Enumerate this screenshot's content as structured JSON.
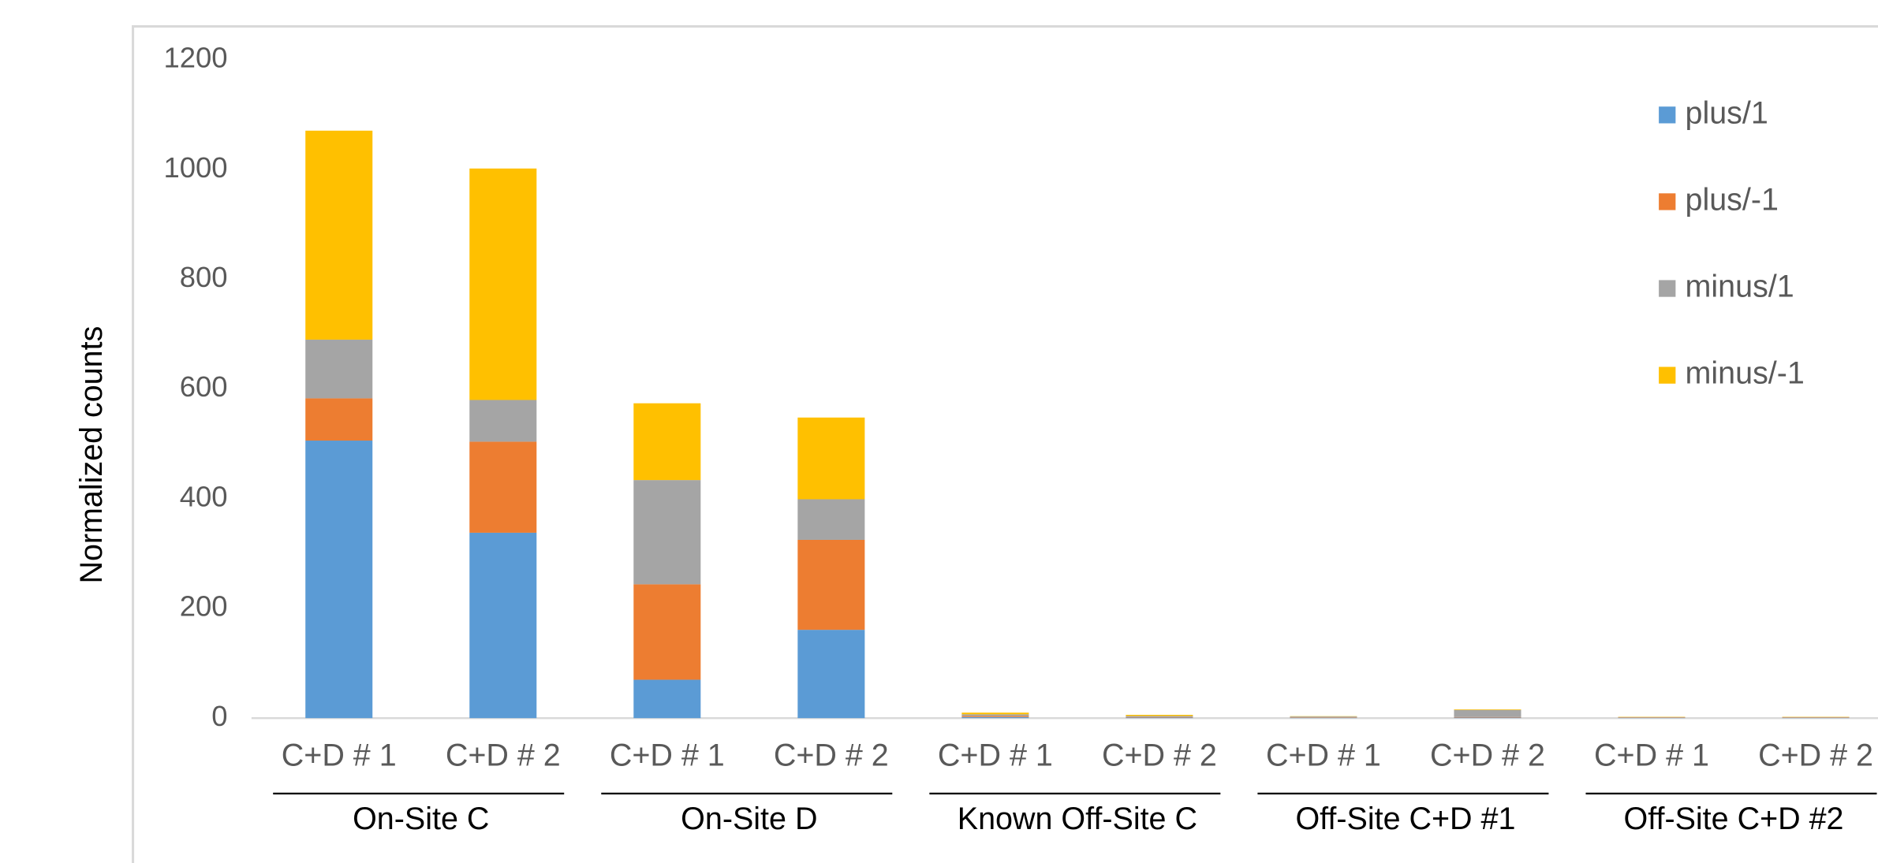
{
  "chart_data": {
    "type": "stacked-bar",
    "y_label": "Normalized counts",
    "categories": [
      "C+D # 1",
      "C+D # 2",
      "C+D # 1",
      "C+D # 2",
      "C+D # 1",
      "C+D # 2",
      "C+D # 1",
      "C+D # 2",
      "C+D # 1",
      "C+D # 2"
    ],
    "groups": [
      {
        "name": "On-Site C"
      },
      {
        "name": "On-Site D"
      },
      {
        "name": "Known Off-Site C"
      },
      {
        "name": "Off-Site C+D #1"
      },
      {
        "name": "Off-Site C+D #2"
      }
    ],
    "series": [
      {
        "name": "plus/1",
        "color": "#5b9bd5",
        "values": [
          506,
          338,
          70,
          161,
          2,
          1,
          0.5,
          1,
          0.5,
          0.5
        ]
      },
      {
        "name": "plus/-1",
        "color": "#ed7d31",
        "values": [
          77,
          166,
          174,
          164,
          2,
          1,
          0.5,
          1,
          0.5,
          0.5
        ]
      },
      {
        "name": "minus/1",
        "color": "#a5a5a5",
        "values": [
          107,
          76,
          190,
          74,
          3,
          2,
          2,
          13,
          1,
          1
        ]
      },
      {
        "name": "minus/-1",
        "color": "#ffc000",
        "values": [
          381,
          422,
          140,
          149,
          3,
          2,
          0.5,
          1,
          0.5,
          0.5
        ]
      }
    ],
    "ylim": [
      0,
      1200
    ],
    "yticks": [
      0,
      200,
      400,
      600,
      800,
      1000,
      1200
    ],
    "grid": false,
    "legend": "right"
  }
}
